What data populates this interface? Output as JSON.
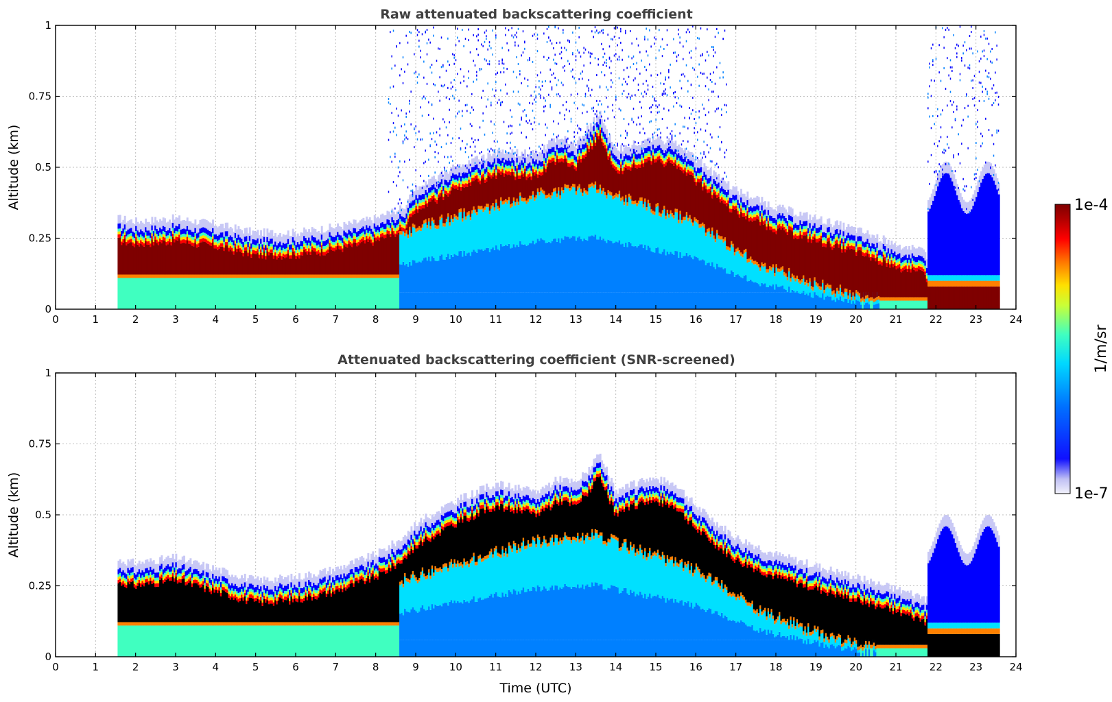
{
  "chart_data": [
    {
      "type": "heatmap",
      "title": "Raw attenuated backscattering coefficient",
      "xlabel": "",
      "ylabel": "Altitude (km)",
      "xlim": [
        0,
        24
      ],
      "ylim": [
        0,
        1
      ],
      "xticks": [
        "0",
        "1",
        "2",
        "3",
        "4",
        "5",
        "6",
        "7",
        "8",
        "9",
        "10",
        "11",
        "12",
        "13",
        "14",
        "15",
        "16",
        "17",
        "18",
        "19",
        "20",
        "21",
        "22",
        "23",
        "24"
      ],
      "yticks": [
        "0",
        "0.25",
        "0.5",
        "0.75",
        "1"
      ],
      "grid": true,
      "data_time_range": [
        1.55,
        23.55
      ],
      "layer_top_km": [
        [
          1.6,
          0.29
        ],
        [
          2,
          0.28
        ],
        [
          3,
          0.29
        ],
        [
          4,
          0.27
        ],
        [
          5,
          0.24
        ],
        [
          6,
          0.24
        ],
        [
          7,
          0.26
        ],
        [
          8,
          0.29
        ],
        [
          8.7,
          0.33
        ],
        [
          9,
          0.4
        ],
        [
          10,
          0.47
        ],
        [
          11,
          0.52
        ],
        [
          12,
          0.52
        ],
        [
          12.6,
          0.58
        ],
        [
          13,
          0.55
        ],
        [
          13.6,
          0.66
        ],
        [
          14,
          0.53
        ],
        [
          14.8,
          0.57
        ],
        [
          15.5,
          0.56
        ],
        [
          16,
          0.5
        ],
        [
          17,
          0.39
        ],
        [
          18,
          0.33
        ],
        [
          19,
          0.29
        ],
        [
          20,
          0.25
        ],
        [
          21,
          0.2
        ],
        [
          21.7,
          0.17
        ],
        [
          22,
          0.12
        ],
        [
          23,
          0.11
        ],
        [
          23.55,
          0.11
        ]
      ],
      "mixed_layer_top_km": [
        [
          8.6,
          0.26
        ],
        [
          12,
          0.4
        ],
        [
          13.5,
          0.42
        ],
        [
          16,
          0.3
        ],
        [
          17.5,
          0.16
        ],
        [
          19,
          0.08
        ],
        [
          20.5,
          0.02
        ]
      ],
      "boundary_layer_top_22_23h_km": 0.48,
      "colorbar": {
        "label": "1/m/sr",
        "min": "1e-7",
        "max": "1e-4",
        "scale": "log"
      }
    },
    {
      "type": "heatmap",
      "title": "Attenuated backscattering coefficient (SNR-screened)",
      "xlabel": "Time (UTC)",
      "ylabel": "Altitude (km)",
      "xlim": [
        0,
        24
      ],
      "ylim": [
        0,
        1
      ],
      "xticks": [
        "0",
        "1",
        "2",
        "3",
        "4",
        "5",
        "6",
        "7",
        "8",
        "9",
        "10",
        "11",
        "12",
        "13",
        "14",
        "15",
        "16",
        "17",
        "18",
        "19",
        "20",
        "21",
        "22",
        "23",
        "24"
      ],
      "yticks": [
        "0",
        "0.25",
        "0.5",
        "0.75",
        "1"
      ],
      "grid": true,
      "data_time_range": [
        1.55,
        23.55
      ],
      "saturated_color": "#000000",
      "layer_top_km": [
        [
          1.6,
          0.31
        ],
        [
          2,
          0.3
        ],
        [
          3,
          0.32
        ],
        [
          4,
          0.28
        ],
        [
          5,
          0.24
        ],
        [
          6,
          0.25
        ],
        [
          7,
          0.28
        ],
        [
          8,
          0.33
        ],
        [
          8.7,
          0.39
        ],
        [
          9,
          0.44
        ],
        [
          10,
          0.52
        ],
        [
          11,
          0.58
        ],
        [
          12,
          0.55
        ],
        [
          12.6,
          0.6
        ],
        [
          13,
          0.58
        ],
        [
          13.6,
          0.68
        ],
        [
          14,
          0.55
        ],
        [
          14.8,
          0.6
        ],
        [
          15.5,
          0.58
        ],
        [
          16,
          0.5
        ],
        [
          17,
          0.39
        ],
        [
          18,
          0.33
        ],
        [
          19,
          0.29
        ],
        [
          20,
          0.25
        ],
        [
          21,
          0.21
        ],
        [
          21.7,
          0.18
        ],
        [
          22,
          0.13
        ],
        [
          23,
          0.12
        ],
        [
          23.55,
          0.12
        ]
      ],
      "mixed_layer_top_km": [
        [
          8.6,
          0.26
        ],
        [
          12,
          0.4
        ],
        [
          13.5,
          0.42
        ],
        [
          16,
          0.3
        ],
        [
          17.5,
          0.16
        ],
        [
          19,
          0.08
        ],
        [
          20.5,
          0.02
        ]
      ],
      "boundary_layer_top_22_23h_km": 0.46,
      "colorbar": {
        "label": "1/m/sr",
        "min": "1e-7",
        "max": "1e-4",
        "scale": "log"
      }
    }
  ],
  "colors": {
    "saturated": "#7f0000",
    "colormap": [
      "#f0f0fa",
      "#c8c8f5",
      "#0000ff",
      "#0080ff",
      "#00e0ff",
      "#40ffc0",
      "#c0ff40",
      "#ffe000",
      "#ff8000",
      "#ff0000",
      "#b00000",
      "#7f0000"
    ]
  }
}
